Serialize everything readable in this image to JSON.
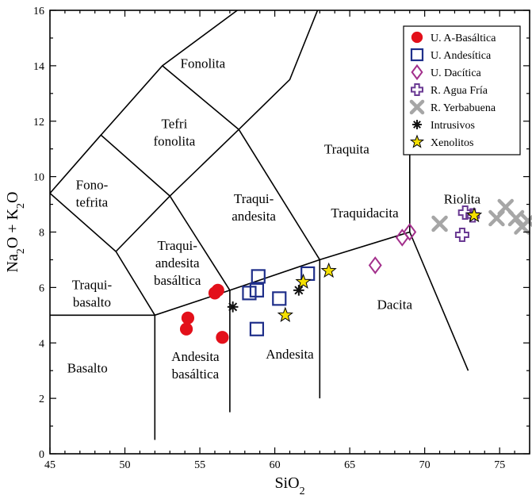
{
  "chart_data": {
    "type": "scatter",
    "xlabel": "SiO2",
    "ylabel": "Na2O + K2O",
    "xlim": [
      45,
      77
    ],
    "ylim": [
      0,
      16
    ],
    "xticks": [
      45,
      50,
      55,
      60,
      65,
      70,
      75
    ],
    "yticks": [
      0,
      2,
      4,
      6,
      8,
      10,
      12,
      14,
      16
    ],
    "legend_position": "top-right",
    "fields": [
      {
        "lines": [
          "Fonolita"
        ],
        "x": 55.2,
        "y": 14.1
      },
      {
        "lines": [
          "Tefri",
          "fonolita"
        ],
        "x": 53.3,
        "y": 11.6
      },
      {
        "lines": [
          "Traquita"
        ],
        "x": 64.8,
        "y": 11.0
      },
      {
        "lines": [
          "Fono-",
          "tefrita"
        ],
        "x": 47.8,
        "y": 9.4
      },
      {
        "lines": [
          "Traqui-",
          "andesita"
        ],
        "x": 58.6,
        "y": 8.9
      },
      {
        "lines": [
          "Riolita"
        ],
        "x": 72.5,
        "y": 9.2
      },
      {
        "lines": [
          "Traquidacita"
        ],
        "x": 66.0,
        "y": 8.7
      },
      {
        "lines": [
          "Traqui-",
          "andesita",
          "basáltica"
        ],
        "x": 53.5,
        "y": 6.9
      },
      {
        "lines": [
          "Traqui-",
          "basalto"
        ],
        "x": 47.8,
        "y": 5.8
      },
      {
        "lines": [
          "Dacita"
        ],
        "x": 68.0,
        "y": 5.4
      },
      {
        "lines": [
          "Basalto"
        ],
        "x": 47.5,
        "y": 3.1
      },
      {
        "lines": [
          "Andesita",
          "basáltica"
        ],
        "x": 54.7,
        "y": 3.2
      },
      {
        "lines": [
          "Andesita"
        ],
        "x": 61.0,
        "y": 3.6
      }
    ],
    "boundaries": [
      [
        [
          45,
          5
        ],
        [
          52,
          5
        ],
        [
          57,
          5.9
        ],
        [
          63,
          7
        ],
        [
          69,
          8
        ]
      ],
      [
        [
          52,
          0.5
        ],
        [
          52,
          5
        ]
      ],
      [
        [
          57,
          1.5
        ],
        [
          57,
          5.9
        ]
      ],
      [
        [
          63,
          2
        ],
        [
          63,
          7
        ]
      ],
      [
        [
          69,
          8
        ],
        [
          69,
          13
        ]
      ],
      [
        [
          69,
          8
        ],
        [
          72.9,
          3
        ]
      ],
      [
        [
          45,
          9.4
        ],
        [
          48.4,
          11.5
        ],
        [
          52.5,
          14
        ],
        [
          57.5,
          16
        ]
      ],
      [
        [
          45,
          9.4
        ],
        [
          49.4,
          7.3
        ],
        [
          52,
          5
        ]
      ],
      [
        [
          49.4,
          7.3
        ],
        [
          53,
          9.3
        ],
        [
          57.6,
          11.7
        ],
        [
          61,
          13.5
        ],
        [
          63,
          16.2
        ]
      ],
      [
        [
          53,
          9.3
        ],
        [
          57,
          5.9
        ]
      ],
      [
        [
          57.6,
          11.7
        ],
        [
          63,
          7
        ]
      ],
      [
        [
          48.4,
          11.5
        ],
        [
          53,
          9.3
        ]
      ],
      [
        [
          52.5,
          14
        ],
        [
          57.6,
          11.7
        ]
      ]
    ],
    "series": [
      {
        "name": "U. A-Basáltica",
        "marker": "circle-filled",
        "color": "#e3101a",
        "points": [
          [
            54.2,
            4.9
          ],
          [
            54.1,
            4.5
          ],
          [
            56.0,
            5.8
          ],
          [
            56.2,
            5.9
          ],
          [
            56.5,
            4.2
          ]
        ]
      },
      {
        "name": "U. Andesítica",
        "marker": "square-open",
        "color": "#1f2f8a",
        "points": [
          [
            58.3,
            5.8
          ],
          [
            58.8,
            5.9
          ],
          [
            58.9,
            6.4
          ],
          [
            58.8,
            4.5
          ],
          [
            60.3,
            5.6
          ],
          [
            62.2,
            6.5
          ]
        ]
      },
      {
        "name": "U. Dacítica",
        "marker": "diamond-open",
        "color": "#a3308c",
        "points": [
          [
            66.7,
            6.8
          ],
          [
            68.5,
            7.8
          ],
          [
            69.0,
            8.0
          ]
        ]
      },
      {
        "name": "R. Agua Fría",
        "marker": "cross-open",
        "color": "#6a3a93",
        "points": [
          [
            72.5,
            7.9
          ],
          [
            72.7,
            8.7
          ],
          [
            73.2,
            8.6
          ]
        ]
      },
      {
        "name": "R. Yerbabuena",
        "marker": "x-bold",
        "color": "#a6a6a6",
        "points": [
          [
            71.0,
            8.3
          ],
          [
            74.8,
            8.5
          ],
          [
            75.4,
            8.9
          ],
          [
            76.1,
            8.5
          ],
          [
            76.5,
            8.2
          ],
          [
            76.9,
            8.4
          ]
        ]
      },
      {
        "name": "Intrusivos",
        "marker": "asterisk",
        "color": "#111111",
        "points": [
          [
            57.2,
            5.3
          ],
          [
            61.6,
            5.9
          ]
        ]
      },
      {
        "name": "Xenolitos",
        "marker": "star",
        "color": "#f5e000",
        "points": [
          [
            60.7,
            5.0
          ],
          [
            61.9,
            6.2
          ],
          [
            63.6,
            6.6
          ],
          [
            73.3,
            8.6
          ]
        ]
      }
    ]
  }
}
